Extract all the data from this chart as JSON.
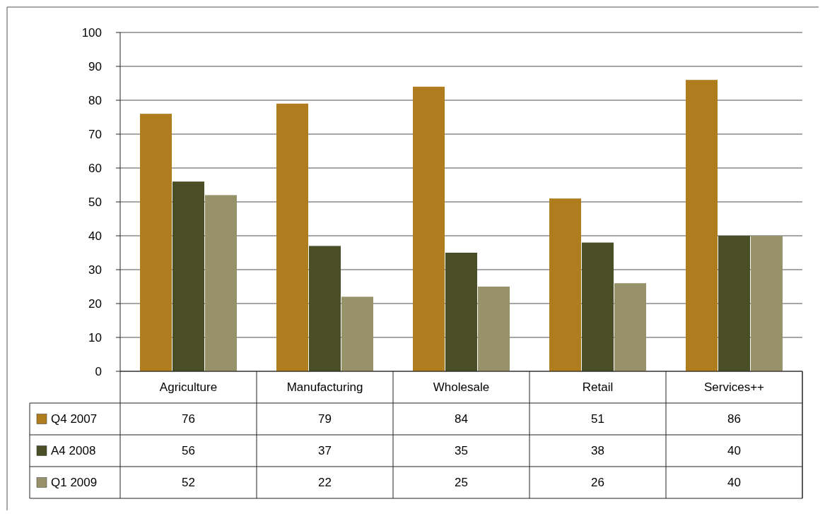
{
  "chart_data": {
    "type": "bar",
    "categories": [
      "Agriculture",
      "Manufacturing",
      "Wholesale",
      "Retail",
      "Services++"
    ],
    "series": [
      {
        "name": "Q4 2007",
        "color": "#af7c1e",
        "values": [
          76,
          79,
          84,
          51,
          86
        ]
      },
      {
        "name": "A4 2008",
        "color": "#4a4e27",
        "values": [
          56,
          37,
          35,
          38,
          40
        ]
      },
      {
        "name": "Q1 2009",
        "color": "#97926a",
        "values": [
          52,
          22,
          25,
          26,
          40
        ]
      }
    ],
    "ylim": [
      0,
      100
    ],
    "yticks": [
      0,
      10,
      20,
      30,
      40,
      50,
      60,
      70,
      80,
      90,
      100
    ],
    "grid": "y",
    "data_labels": true,
    "legend": "bottom"
  }
}
